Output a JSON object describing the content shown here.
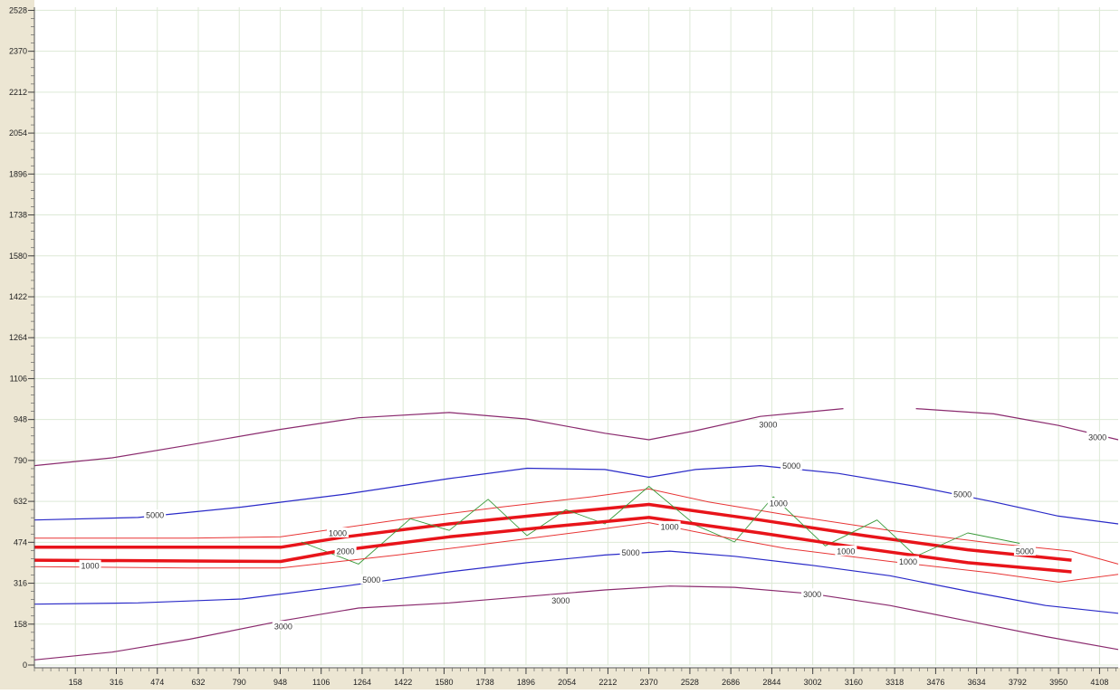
{
  "chart_data": {
    "type": "line",
    "title": "",
    "xlabel": "",
    "ylabel": "",
    "xlim": [
      0,
      4180
    ],
    "ylim": [
      0,
      2540
    ],
    "grid": true,
    "x_ticks": [
      158,
      316,
      474,
      632,
      790,
      948,
      1106,
      1264,
      1422,
      1580,
      1738,
      1896,
      2054,
      2212,
      2370,
      2528,
      2686,
      2844,
      3002,
      3160,
      3318,
      3476,
      3634,
      3792,
      3950,
      4108
    ],
    "y_ticks": [
      0,
      158,
      316,
      474,
      632,
      790,
      948,
      1106,
      1264,
      1422,
      1580,
      1738,
      1896,
      2054,
      2212,
      2370,
      2528
    ],
    "colors": {
      "road": "#e8141a",
      "road_edge": "#e83535",
      "contour_1000": "#e8141a",
      "contour_3000": "#8a2a6e",
      "contour_5000": "#2a2ac8",
      "median": "#3a9a3a",
      "ramp": "#222222",
      "grid": "#dde9d6",
      "axis_bg": "#ece6d3"
    },
    "series": [
      {
        "name": "",
        "kind": "contour-3000",
        "x": [
          0,
          300,
          600,
          950,
          1250,
          1600,
          1900,
          2200,
          2370,
          2550,
          2800,
          3120
        ],
        "y": [
          770,
          800,
          850,
          910,
          955,
          975,
          950,
          895,
          870,
          905,
          960,
          990
        ]
      },
      {
        "name": "",
        "kind": "contour-3000",
        "x": [
          3400,
          3700,
          3950,
          4180
        ],
        "y": [
          990,
          970,
          925,
          870
        ]
      },
      {
        "name": "",
        "kind": "contour-5000",
        "x": [
          0,
          400,
          800,
          1200,
          1600,
          1900,
          2200,
          2370,
          2550,
          2800,
          3100,
          3400,
          3700,
          3950,
          4180
        ],
        "y": [
          560,
          570,
          610,
          660,
          720,
          760,
          755,
          725,
          755,
          770,
          740,
          690,
          630,
          575,
          545
        ]
      },
      {
        "name": "",
        "kind": "road-edge",
        "x": [
          0,
          600,
          950,
          1400,
          1800,
          2150,
          2370,
          2600,
          2900,
          3300,
          3700,
          4000,
          4180
        ],
        "y": [
          490,
          490,
          495,
          560,
          610,
          650,
          680,
          630,
          580,
          520,
          470,
          440,
          390
        ]
      },
      {
        "name": "",
        "kind": "road",
        "x": [
          0,
          950,
          1200,
          1600,
          2000,
          2370,
          2800,
          3200,
          3600,
          4000
        ],
        "y": [
          455,
          455,
          495,
          545,
          585,
          620,
          560,
          500,
          445,
          405
        ]
      },
      {
        "name": "",
        "kind": "median",
        "x": [
          1030,
          1250,
          1450,
          1600,
          1750,
          1900,
          2050,
          2200,
          2370,
          2550,
          2700,
          2850,
          3050,
          3250,
          3400,
          3600,
          3800
        ],
        "y": [
          475,
          390,
          565,
          520,
          640,
          500,
          600,
          545,
          690,
          540,
          475,
          650,
          460,
          560,
          420,
          510,
          470
        ]
      },
      {
        "name": "",
        "kind": "road",
        "x": [
          0,
          950,
          1200,
          1600,
          2000,
          2370,
          2800,
          3200,
          3600,
          4000
        ],
        "y": [
          405,
          400,
          445,
          495,
          535,
          570,
          510,
          450,
          395,
          360
        ]
      },
      {
        "name": "",
        "kind": "road-edge",
        "x": [
          0,
          600,
          950,
          1400,
          1800,
          2150,
          2370,
          2600,
          2900,
          3300,
          3700,
          3950,
          4180
        ],
        "y": [
          380,
          375,
          375,
          425,
          475,
          520,
          550,
          505,
          450,
          400,
          355,
          320,
          350
        ]
      },
      {
        "name": "",
        "kind": "contour-5000",
        "x": [
          0,
          400,
          800,
          1200,
          1600,
          1900,
          2200,
          2450,
          2700,
          3000,
          3300,
          3600,
          3900,
          4180
        ],
        "y": [
          235,
          240,
          255,
          305,
          360,
          395,
          425,
          440,
          420,
          385,
          345,
          285,
          230,
          200
        ]
      },
      {
        "name": "",
        "kind": "contour-3000",
        "x": [
          0,
          300,
          600,
          950,
          1250,
          1600,
          1900,
          2200,
          2450,
          2700,
          3000,
          3300,
          3600,
          3900,
          4180
        ],
        "y": [
          20,
          50,
          100,
          170,
          220,
          240,
          265,
          290,
          305,
          300,
          275,
          230,
          170,
          110,
          60
        ]
      }
    ],
    "annotations": [
      {
        "text": "3000",
        "x": 2830,
        "y": 930
      },
      {
        "text": "3000",
        "x": 4100,
        "y": 880
      },
      {
        "text": "5000",
        "x": 2920,
        "y": 770
      },
      {
        "text": "5000",
        "x": 3580,
        "y": 660
      },
      {
        "text": "5000",
        "x": 465,
        "y": 580
      },
      {
        "text": "1000",
        "x": 2870,
        "y": 625
      },
      {
        "text": "1000",
        "x": 1170,
        "y": 510
      },
      {
        "text": "2000",
        "x": 1200,
        "y": 440
      },
      {
        "text": "1000",
        "x": 2450,
        "y": 535
      },
      {
        "text": "5000",
        "x": 2300,
        "y": 435
      },
      {
        "text": "1000",
        "x": 3130,
        "y": 440
      },
      {
        "text": "1000",
        "x": 3370,
        "y": 400
      },
      {
        "text": "5000",
        "x": 3820,
        "y": 440
      },
      {
        "text": "1000",
        "x": 215,
        "y": 385
      },
      {
        "text": "5000",
        "x": 1300,
        "y": 330
      },
      {
        "text": "3000",
        "x": 2030,
        "y": 250
      },
      {
        "text": "3000",
        "x": 3000,
        "y": 275
      },
      {
        "text": "3000",
        "x": 960,
        "y": 150
      }
    ]
  }
}
